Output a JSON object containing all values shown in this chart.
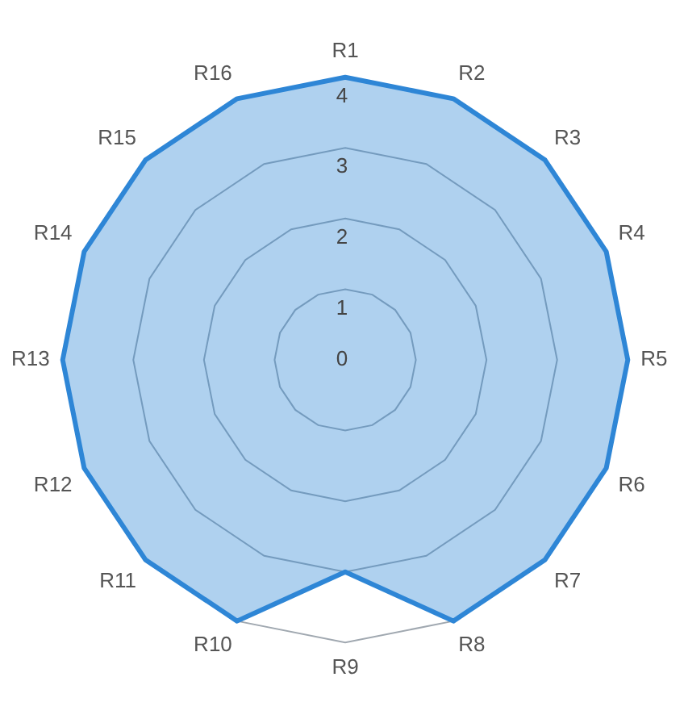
{
  "chart_data": {
    "type": "radar",
    "categories": [
      "R1",
      "R2",
      "R3",
      "R4",
      "R5",
      "R6",
      "R7",
      "R8",
      "R9",
      "R10",
      "R11",
      "R12",
      "R13",
      "R14",
      "R15",
      "R16"
    ],
    "series": [
      {
        "color": "#2e86d6",
        "values": [
          4,
          4,
          4,
          4,
          4,
          4,
          4,
          4,
          3,
          4,
          4,
          4,
          4,
          4,
          4,
          4
        ]
      }
    ],
    "ylim": [
      0,
      4
    ],
    "yticks": [
      0,
      1,
      2,
      3,
      4
    ],
    "grid": true,
    "legend": false
  }
}
